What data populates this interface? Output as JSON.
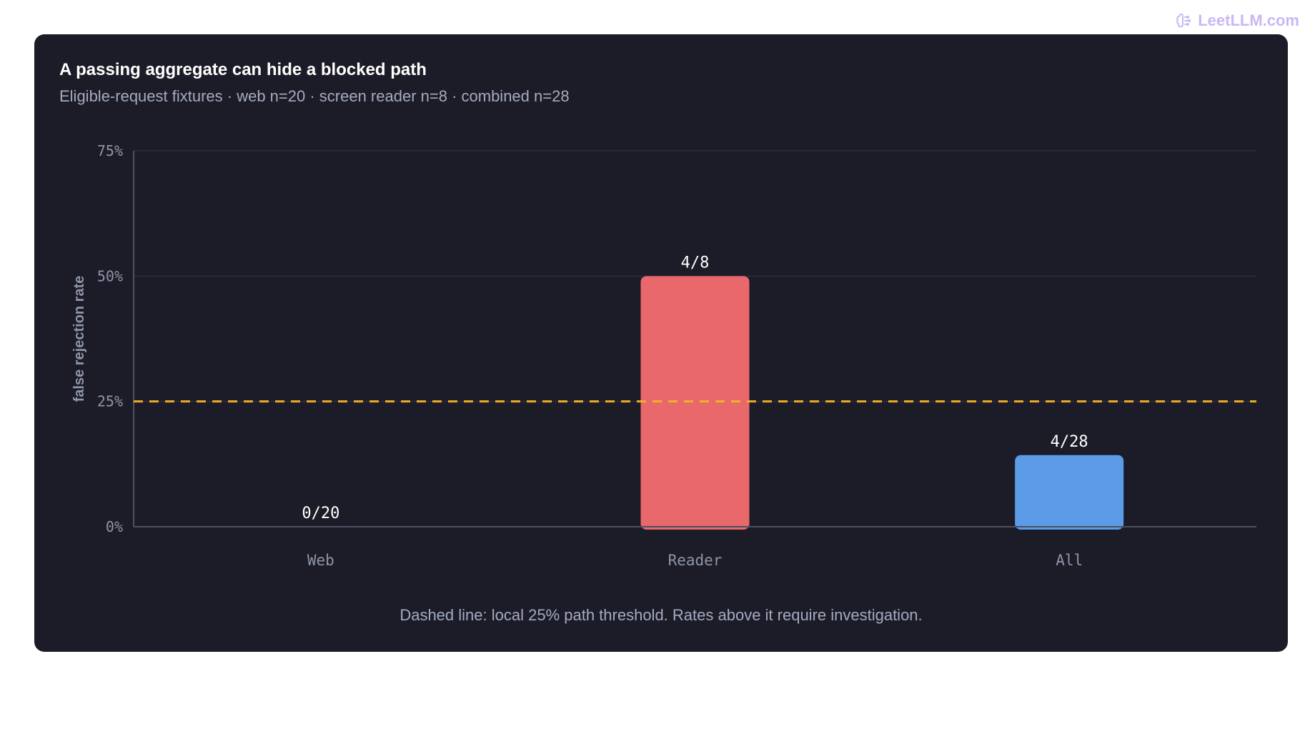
{
  "watermark": {
    "icon": "brain-icon",
    "text": "LeetLLM.com",
    "color": "#c9b8f5"
  },
  "chart_data": {
    "type": "bar",
    "title": "A passing aggregate can hide a blocked path",
    "subtitle": "Eligible-request fixtures · web n=20 · screen reader n=8 · combined n=28",
    "ylabel": "false rejection rate",
    "xlabel": "",
    "categories": [
      "Web",
      "Reader",
      "All"
    ],
    "values": [
      0,
      50,
      14.29
    ],
    "data_labels": [
      "0/20",
      "4/8",
      "4/28"
    ],
    "bar_colors": [
      "#5b9be8",
      "#e8686b",
      "#5b9be8"
    ],
    "ylim": [
      0,
      75
    ],
    "yticks": [
      0,
      25,
      50,
      75
    ],
    "ytick_labels": [
      "0%",
      "25%",
      "50%",
      "75%"
    ],
    "threshold": {
      "value": 25,
      "color": "#f5b324",
      "style": "dashed"
    },
    "grid": true,
    "footnote": "Dashed line: local 25% path threshold. Rates above it require investigation."
  }
}
